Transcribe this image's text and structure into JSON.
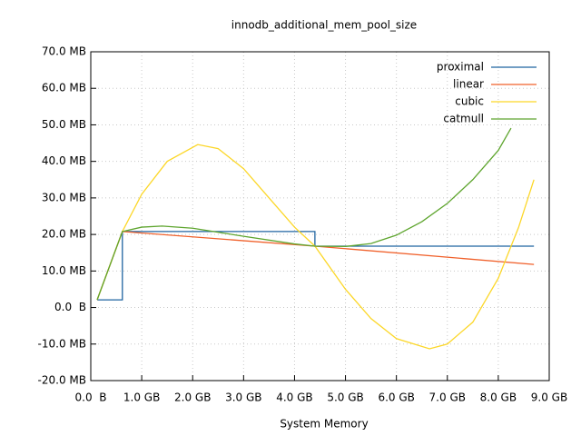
{
  "chart_data": {
    "type": "line",
    "title": "innodb_additional_mem_pool_size",
    "x_label": "System Memory",
    "xlim": [
      0,
      9
    ],
    "ylim": [
      -20,
      70
    ],
    "xticks": [
      {
        "value": 0,
        "label": "0.0  B"
      },
      {
        "value": 1,
        "label": "1.0 GB"
      },
      {
        "value": 2,
        "label": "2.0 GB"
      },
      {
        "value": 3,
        "label": "3.0 GB"
      },
      {
        "value": 4,
        "label": "4.0 GB"
      },
      {
        "value": 5,
        "label": "5.0 GB"
      },
      {
        "value": 6,
        "label": "6.0 GB"
      },
      {
        "value": 7,
        "label": "7.0 GB"
      },
      {
        "value": 8,
        "label": "8.0 GB"
      },
      {
        "value": 9,
        "label": "9.0 GB"
      }
    ],
    "yticks": [
      {
        "value": -20,
        "label": "-20.0 MB"
      },
      {
        "value": -10,
        "label": "-10.0 MB"
      },
      {
        "value": 0,
        "label": "0.0  B"
      },
      {
        "value": 10,
        "label": "10.0 MB"
      },
      {
        "value": 20,
        "label": "20.0 MB"
      },
      {
        "value": 30,
        "label": "30.0 MB"
      },
      {
        "value": 40,
        "label": "40.0 MB"
      },
      {
        "value": 50,
        "label": "50.0 MB"
      },
      {
        "value": 60,
        "label": "60.0 MB"
      },
      {
        "value": 70,
        "label": "70.0 MB"
      }
    ],
    "grid": true,
    "legend": "top-right",
    "series": [
      {
        "name": "proximal",
        "color": "#1f64a0",
        "x": [
          0.125,
          0.62,
          0.62,
          4.4,
          4.4,
          8.7
        ],
        "values": [
          2.1,
          2.1,
          20.8,
          20.8,
          16.8,
          16.8
        ]
      },
      {
        "name": "linear",
        "color": "#f0602a",
        "x": [
          0.125,
          0.62,
          4.4,
          8.7
        ],
        "values": [
          2.1,
          20.8,
          16.8,
          11.8
        ]
      },
      {
        "name": "cubic",
        "color": "#fcd728",
        "x": [
          0.125,
          0.62,
          1.0,
          1.5,
          2.1,
          2.5,
          3.0,
          3.5,
          4.0,
          4.4,
          5.0,
          5.5,
          6.0,
          6.65,
          7.0,
          7.5,
          8.0,
          8.4,
          8.7
        ],
        "values": [
          2.1,
          20.8,
          31,
          40,
          44.6,
          43.5,
          38,
          30,
          22,
          16.8,
          5,
          -3,
          -8.5,
          -11.3,
          -10,
          -4,
          8,
          22,
          35
        ]
      },
      {
        "name": "catmull",
        "color": "#5ea52e",
        "x": [
          0.125,
          0.62,
          1.0,
          1.4,
          2.0,
          3.0,
          4.0,
          4.4,
          5.0,
          5.5,
          6.0,
          6.5,
          7.0,
          7.5,
          8.0,
          8.25
        ],
        "values": [
          2.1,
          20.8,
          22,
          22.3,
          21.7,
          19.5,
          17.4,
          16.8,
          16.7,
          17.5,
          19.8,
          23.5,
          28.5,
          35,
          43,
          49.1
        ]
      }
    ]
  }
}
